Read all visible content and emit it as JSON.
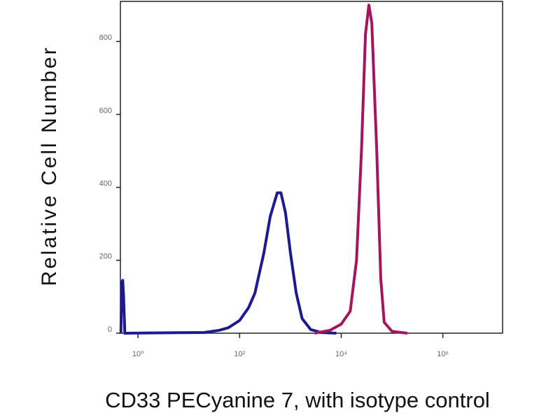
{
  "chart_data": {
    "type": "line",
    "x_label": "CD33 PECyanine 7, with isotype control",
    "y_label": "Relative Cell Number",
    "xscale": "log",
    "xlim": [
      0.45,
      15000000
    ],
    "ylim": [
      0,
      910
    ],
    "xticks": [
      {
        "value": 1,
        "label": "10⁰"
      },
      {
        "value": 100,
        "label": "10²"
      },
      {
        "value": 10000,
        "label": "10⁴"
      },
      {
        "value": 1000000,
        "label": "10⁶"
      }
    ],
    "yticks": [
      0,
      200,
      400,
      600,
      800
    ],
    "grid": false,
    "series": [
      {
        "color": "#1c1a8e",
        "x": [
          0.46,
          0.48,
          0.5,
          0.52,
          0.55,
          20,
          40,
          60,
          100,
          150,
          200,
          300,
          400,
          550,
          650,
          800,
          1000,
          1300,
          1700,
          2500,
          4000,
          8000
        ],
        "values": [
          0,
          140,
          145,
          100,
          0,
          2,
          8,
          15,
          35,
          70,
          110,
          220,
          320,
          385,
          385,
          330,
          220,
          110,
          40,
          10,
          2,
          0
        ]
      },
      {
        "color": "#a3165e",
        "x": [
          3000,
          6000,
          10000,
          15000,
          20000,
          25000,
          30000,
          35000,
          40000,
          50000,
          60000,
          70000,
          100000,
          200000
        ],
        "values": [
          0,
          8,
          25,
          60,
          200,
          500,
          820,
          900,
          850,
          500,
          150,
          30,
          5,
          0
        ]
      }
    ]
  }
}
